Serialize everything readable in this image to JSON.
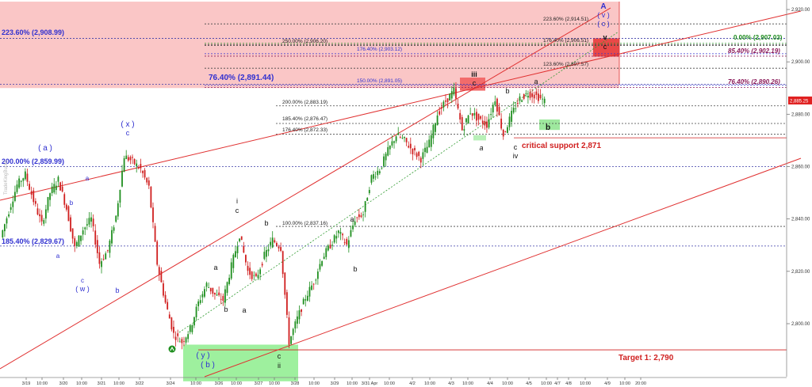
{
  "chart_data": {
    "type": "candlestick",
    "watermark": "TradeKingBucks",
    "y_axis": {
      "ticks": [
        2920.0,
        2900.0,
        2880.0,
        2860.0,
        2840.0,
        2820.0,
        2800.0
      ],
      "tick_labels": [
        "2,920.00",
        "2,900.00",
        "2,880.00",
        "2,860.00",
        "2,840.00",
        "2,820.00",
        "2,800.00"
      ],
      "current_price_label": "2,885.25",
      "current_price": 2885.25,
      "range": [
        2782,
        2923
      ]
    },
    "x_axis": {
      "tick_labels": [
        "3/19",
        "10:00",
        "3/20",
        "10:00",
        "3/21",
        "10:00",
        "3/22",
        "3/24",
        "10:00",
        "3/26",
        "10:00",
        "3/27",
        "10:00",
        "3/28",
        "10:00",
        "3/29",
        "10:00",
        "3/31 Apr",
        "10:00",
        "4/2",
        "10:00",
        "4/3",
        "10:00",
        "4/4",
        "10:00",
        "4/5",
        "10:00",
        "4/7",
        "4/8",
        "10:00",
        "4/9",
        "10:00",
        "20:00"
      ]
    },
    "zones": [
      {
        "name": "resistance-zone",
        "color": "#f9c0c0",
        "y_top": 2923,
        "y_bottom": 2890
      },
      {
        "name": "wave-iii-box",
        "color": "#f26b6b",
        "y_top": 2894,
        "y_bottom": 2889
      },
      {
        "name": "wave-v-box",
        "color": "#e94848",
        "y_top": 2909,
        "y_bottom": 2902
      },
      {
        "name": "support-box-y",
        "color": "#9ef09e",
        "y_top": 2792,
        "y_bottom": 2778
      },
      {
        "name": "wave-a-marker",
        "color": "#b8f0b8",
        "y_top": 2872,
        "y_bottom": 2870
      },
      {
        "name": "wave-b-marker",
        "color": "#9ee89e",
        "y_top": 2878,
        "y_bottom": 2874
      }
    ],
    "fib_levels_left": [
      {
        "label": "223.60% (2,908.99)",
        "value": 2908.99,
        "color": "#3030d0"
      },
      {
        "label": "76.40% (2,891.44)",
        "value": 2891.44,
        "color": "#3030d0"
      },
      {
        "label": "200.00% (2,859.99)",
        "value": 2859.99,
        "color": "#3030d0"
      },
      {
        "label": "185.40% (2,829.67)",
        "value": 2829.67,
        "color": "#3030d0"
      }
    ],
    "fib_levels_mid": [
      {
        "label": "223.60% (2,914.51)",
        "value": 2914.51
      },
      {
        "label": "250.00% (2,906.20)",
        "value": 2906.2
      },
      {
        "label": "176.40% (2,906.51)",
        "value": 2906.51
      },
      {
        "label": "176.40% (2,903.12)",
        "value": 2903.12,
        "color": "#3030d0"
      },
      {
        "label": "123.60% (2,897.57)",
        "value": 2897.57
      },
      {
        "label": "150.00% (2,891.05)",
        "value": 2891.05,
        "color": "#3030d0"
      },
      {
        "label": "200.00% (2,883.19)",
        "value": 2883.19
      },
      {
        "label": "185.40% (2,876.47)",
        "value": 2876.47
      },
      {
        "label": "176.40% (2,872.33)",
        "value": 2872.33
      },
      {
        "label": "100.00% (2,837.16)",
        "value": 2837.16
      }
    ],
    "fib_levels_right": [
      {
        "label": "0.00% (2,907.03)",
        "value": 2907.03,
        "color": "#1a8a1a"
      },
      {
        "label": "85.40% (2,902.19)",
        "value": 2902.19,
        "color": "#8a1a5a"
      },
      {
        "label": "76.40% (2,890.26)",
        "value": 2890.26,
        "color": "#8a1a5a"
      }
    ],
    "annotations": {
      "critical_support": "critical  support 2,871",
      "critical_support_value": 2871,
      "target": "Target 1: 2,790",
      "target_value": 2790
    },
    "wave_labels": [
      {
        "text": "A",
        "color": "#3030d0"
      },
      {
        "text": "( v )",
        "color": "#3030d0"
      },
      {
        "text": "( c )",
        "color": "#3030d0"
      },
      {
        "text": "v",
        "color": "#111111"
      },
      {
        "text": "c",
        "color": "#111111"
      },
      {
        "text": "iii",
        "color": "#111111"
      },
      {
        "text": "c",
        "color": "#111111"
      },
      {
        "text": "a",
        "color": "#111111"
      },
      {
        "text": "b",
        "color": "#111111"
      },
      {
        "text": "a",
        "color": "#111111"
      },
      {
        "text": "b",
        "color": "#111111"
      },
      {
        "text": "c",
        "color": "#111111"
      },
      {
        "text": "iv",
        "color": "#111111"
      },
      {
        "text": "( x )",
        "color": "#3030d0"
      },
      {
        "text": "c",
        "color": "#3030d0"
      },
      {
        "text": "( a )",
        "color": "#3030d0"
      },
      {
        "text": "a",
        "color": "#3030d0"
      },
      {
        "text": "b",
        "color": "#3030d0"
      },
      {
        "text": "a",
        "color": "#3030d0"
      },
      {
        "text": "c",
        "color": "#3030d0"
      },
      {
        "text": "( w )",
        "color": "#3030d0"
      },
      {
        "text": "b",
        "color": "#3030d0"
      },
      {
        "text": "i",
        "color": "#111111"
      },
      {
        "text": "c",
        "color": "#111111"
      },
      {
        "text": "b",
        "color": "#111111"
      },
      {
        "text": "a",
        "color": "#111111"
      },
      {
        "text": "b",
        "color": "#111111"
      },
      {
        "text": "a",
        "color": "#111111"
      },
      {
        "text": "a",
        "color": "#111111"
      },
      {
        "text": "b",
        "color": "#111111"
      },
      {
        "text": "( y )",
        "color": "#3030d0"
      },
      {
        "text": "( b )",
        "color": "#3030d0"
      },
      {
        "text": "c",
        "color": "#111111"
      },
      {
        "text": "ii",
        "color": "#111111"
      }
    ],
    "price_path": [
      2833,
      2843,
      2853,
      2857,
      2847,
      2838,
      2850,
      2855,
      2844,
      2829,
      2836,
      2840,
      2823,
      2828,
      2841,
      2864,
      2862,
      2859,
      2852,
      2823,
      2808,
      2796,
      2793,
      2798,
      2808,
      2815,
      2811,
      2809,
      2822,
      2834,
      2820,
      2817,
      2826,
      2832,
      2829,
      2793,
      2802,
      2810,
      2816,
      2825,
      2830,
      2835,
      2830,
      2840,
      2842,
      2856,
      2859,
      2866,
      2872,
      2870,
      2866,
      2863,
      2869,
      2880,
      2885,
      2889,
      2874,
      2881,
      2878,
      2876,
      2886,
      2872,
      2880,
      2886,
      2888,
      2887,
      2885
    ],
    "colors": {
      "up": "#1f8f1f",
      "down": "#d01f1f",
      "grid": "#3a3aa8",
      "channel": "#e03030",
      "trendline": "#2f9a2f"
    }
  }
}
